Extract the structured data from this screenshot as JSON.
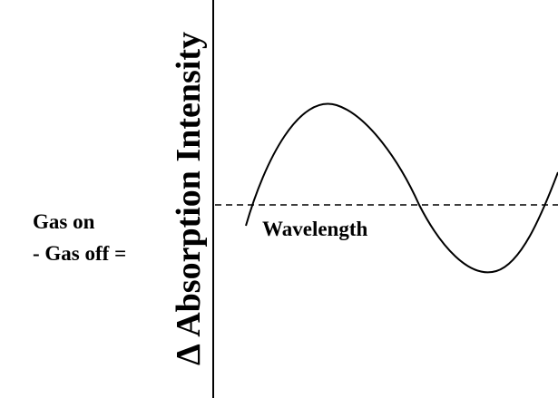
{
  "diagram": {
    "y_axis_label": "Δ Absorption Intensity",
    "x_axis_label": "Wavelength",
    "equation": {
      "line1": "Gas on",
      "line2": "- Gas off ="
    }
  }
}
